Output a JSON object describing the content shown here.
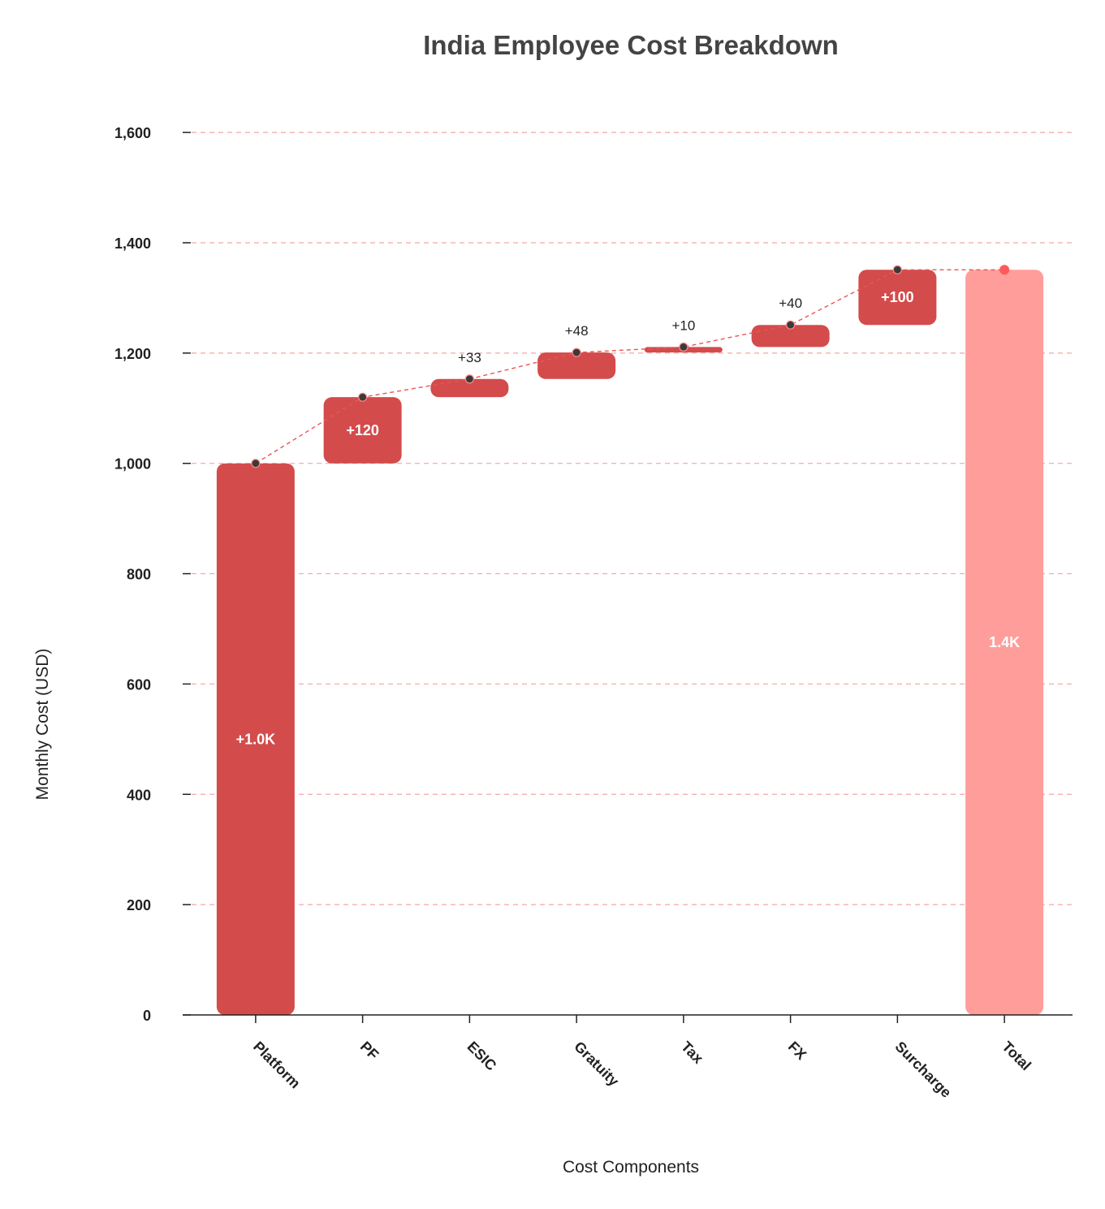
{
  "chart_data": {
    "type": "waterfall",
    "title": "India Employee Cost Breakdown",
    "xlabel": "Cost Components",
    "ylabel": "Monthly Cost (USD)",
    "categories": [
      "Platform",
      "PF",
      "ESIC",
      "Gratuity",
      "Tax",
      "FX",
      "Surcharge",
      "Total"
    ],
    "values": [
      1000,
      120,
      33,
      48,
      10,
      40,
      100,
      1351
    ],
    "bar_kinds": [
      "increase",
      "increase",
      "increase",
      "increase",
      "increase",
      "increase",
      "increase",
      "total"
    ],
    "data_labels": [
      "+1.0K",
      "+120",
      "+33",
      "+48",
      "+10",
      "+40",
      "+100",
      "1.4K"
    ],
    "ylim": [
      0,
      1650
    ],
    "yticks": [
      0,
      200,
      400,
      600,
      800,
      1000,
      1200,
      1400,
      1600
    ],
    "ytick_labels": [
      "0",
      "200",
      "400",
      "600",
      "800",
      "1,000",
      "1,200",
      "1,400",
      "1,600"
    ],
    "grid": true,
    "connector_line": true,
    "colors": {
      "increase": "#d44b4b",
      "total": "#ff9d9b",
      "grid": "#f4a6a6",
      "connector": "#e85555",
      "marker": "#3a3a3a",
      "total_marker": "#ff5a5a",
      "axis": "#222222",
      "title": "#444444"
    }
  }
}
